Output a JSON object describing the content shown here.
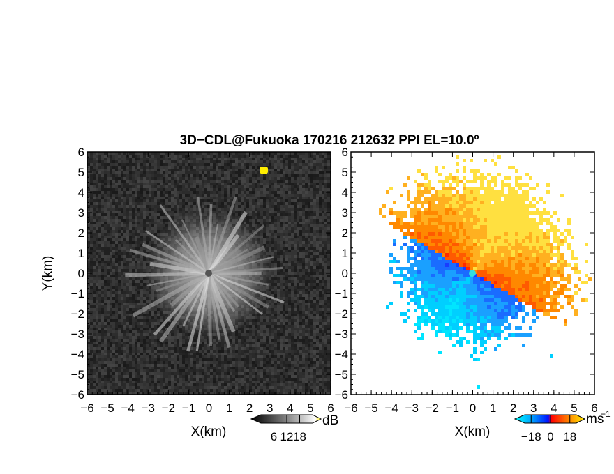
{
  "title": "3D−CDL@Fukuoka 170216 212632 PPI EL=10.0º",
  "chart_data": [
    {
      "panel": "left",
      "type": "heatmap",
      "variable": "reflectivity (grayscale)",
      "xlabel": "X(km)",
      "ylabel": "Y(km)",
      "xlim": [
        -6,
        6
      ],
      "ylim": [
        -6,
        6
      ],
      "x_ticks": [
        "−6",
        "−5",
        "−4",
        "−3",
        "−2",
        "−1",
        "0",
        "1",
        "2",
        "3",
        "4",
        "5",
        "6"
      ],
      "y_ticks": [
        "6",
        "5",
        "4",
        "3",
        "2",
        "1",
        "0",
        "−1",
        "−2",
        "−3",
        "−4",
        "−5",
        "−6"
      ],
      "colorbar": {
        "unit": "dB",
        "ticks": [
          "6",
          "12",
          "18"
        ],
        "tick_values": [
          6,
          12,
          18
        ],
        "range": [
          0,
          24
        ]
      },
      "features": {
        "radar_center": [
          0,
          0
        ],
        "echo_radius_km_approx": 3,
        "bright_spot": {
          "x": 2.7,
          "y": 5.1,
          "color": "#ffee00"
        }
      }
    },
    {
      "panel": "right",
      "type": "heatmap",
      "variable": "Doppler velocity",
      "xlabel": "X(km)",
      "xlim": [
        -6,
        6
      ],
      "ylim": [
        -6,
        6
      ],
      "x_ticks": [
        "−6",
        "−5",
        "−4",
        "−3",
        "−2",
        "−1",
        "0",
        "1",
        "2",
        "3",
        "4",
        "5",
        "6"
      ],
      "y_ticks": [
        "6",
        "5",
        "4",
        "3",
        "2",
        "1",
        "0",
        "−1",
        "−2",
        "−3",
        "−4",
        "−5",
        "−6"
      ],
      "colorbar": {
        "unit": "ms",
        "unit_exponent": "−1",
        "ticks": [
          "−18",
          "0",
          "18"
        ],
        "tick_values": [
          -18,
          0,
          18
        ],
        "range": [
          -24,
          24
        ]
      },
      "features": {
        "radar_center": [
          0,
          0
        ],
        "positive_sector": "north-east (orange/yellow)",
        "negative_sector": "south-west (blue/cyan)",
        "zero_line_angle_deg": -30
      }
    }
  ],
  "colors": {
    "gray_dark": "#2a2a2a",
    "gray_bright": "#c8c8c8",
    "vel_neg_strong": "#1a3cff",
    "vel_neg_weak": "#00e5ff",
    "vel_pos_weak": "#ff2a00",
    "vel_pos_strong": "#ffe040",
    "center_marker_left": "#555555",
    "center_marker_right": "#33dddd"
  }
}
